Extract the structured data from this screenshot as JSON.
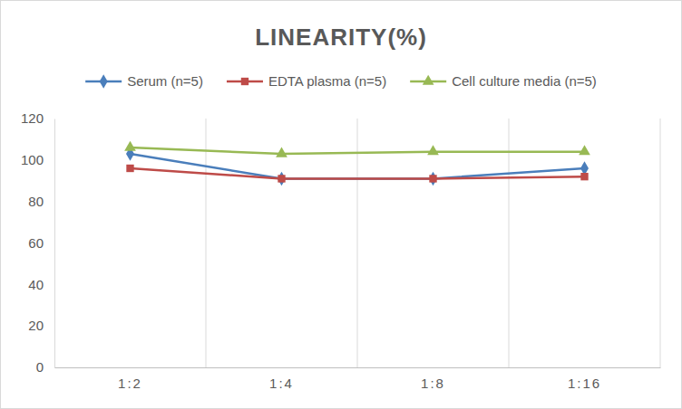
{
  "chart_data": {
    "type": "line",
    "title": "LINEARITY(%)",
    "categories": [
      "1:2",
      "1:4",
      "1:8",
      "1:16"
    ],
    "series": [
      {
        "name": "Serum (n=5)",
        "color": "#4a7ebb",
        "marker": "diamond",
        "values": [
          103,
          91,
          91,
          96
        ]
      },
      {
        "name": "EDTA plasma (n=5)",
        "color": "#be4b48",
        "marker": "square",
        "values": [
          96,
          91,
          91,
          92
        ]
      },
      {
        "name": "Cell culture media (n=5)",
        "color": "#98b954",
        "marker": "triangle",
        "values": [
          106,
          103,
          104,
          104
        ]
      }
    ],
    "ylim": [
      0,
      120
    ],
    "yticks": [
      0,
      20,
      40,
      60,
      80,
      100,
      120
    ],
    "grid": "x",
    "legend": "top"
  }
}
